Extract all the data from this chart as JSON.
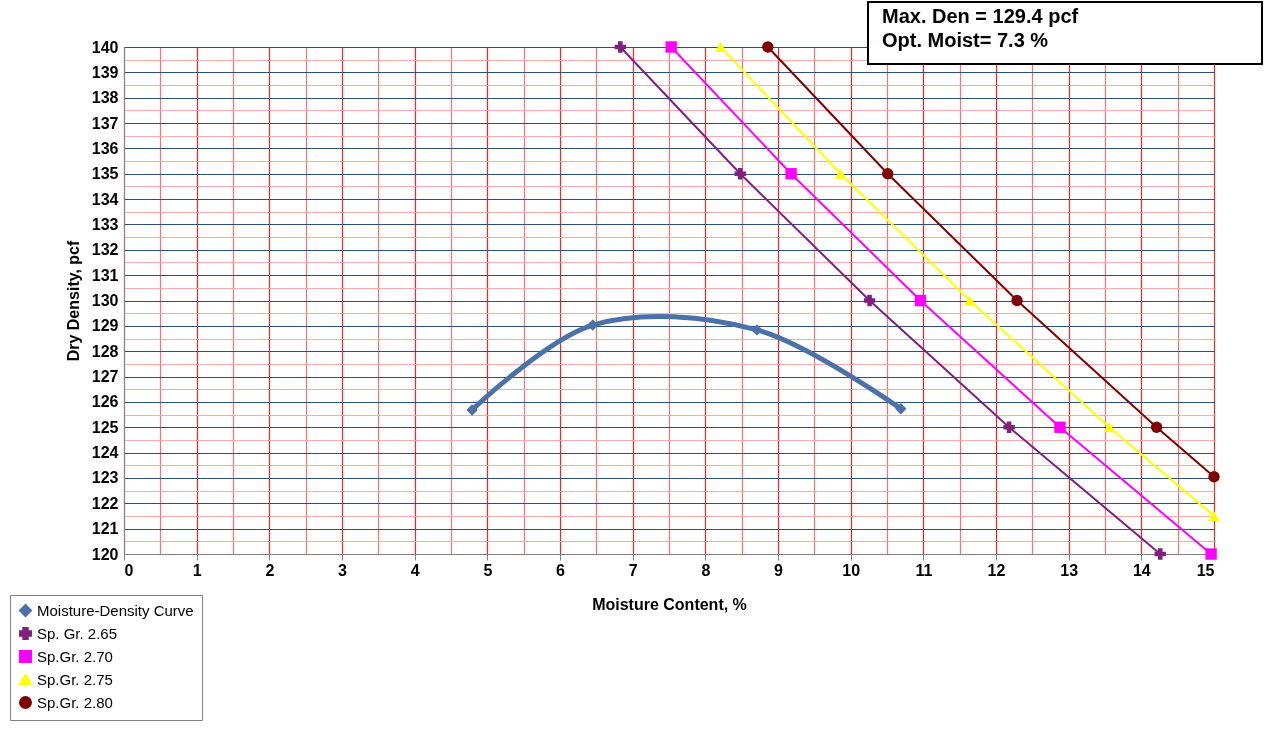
{
  "chart_data": {
    "type": "line",
    "xlabel": "Moisture Content, %",
    "ylabel": "Dry Density, pcf",
    "xlim": [
      0,
      15
    ],
    "xticks": [
      0,
      {
        "value": 0.5,
        "label": null
      },
      1,
      {
        "value": 1.5,
        "label": null
      },
      2,
      {
        "value": 2.5,
        "label": null
      },
      3,
      {
        "value": 3.5,
        "label": null
      },
      4,
      {
        "value": 4.5,
        "label": null
      },
      5,
      {
        "value": 5.5,
        "label": null
      },
      6,
      {
        "value": 6.5,
        "label": null
      },
      7,
      {
        "value": 7.5,
        "label": null
      },
      8,
      {
        "value": 8.5,
        "label": null
      },
      9,
      {
        "value": 9.5,
        "label": null
      },
      10,
      {
        "value": 10.5,
        "label": null
      },
      11,
      {
        "value": 11.5,
        "label": null
      },
      12,
      {
        "value": 12.5,
        "label": null
      },
      13,
      {
        "value": 13.5,
        "label": null
      },
      14,
      {
        "value": 14.5,
        "label": null
      },
      15
    ],
    "ylim": [
      120,
      140
    ],
    "yticks": [
      120,
      {
        "value": 120.5,
        "label": null
      },
      121,
      {
        "value": 121.5,
        "label": null
      },
      122,
      {
        "value": 122.5,
        "label": null
      },
      123,
      {
        "value": 123.5,
        "label": null
      },
      124,
      {
        "value": 124.5,
        "label": null
      },
      125,
      {
        "value": 125.5,
        "label": null
      },
      126,
      {
        "value": 126.5,
        "label": null
      },
      127,
      {
        "value": 127.5,
        "label": null
      },
      128,
      {
        "value": 128.5,
        "label": null
      },
      129,
      {
        "value": 129.5,
        "label": null
      },
      130,
      {
        "value": 130.5,
        "label": null
      },
      131,
      {
        "value": 131.5,
        "label": null
      },
      132,
      {
        "value": 132.5,
        "label": null
      },
      133,
      {
        "value": 133.5,
        "label": null
      },
      134,
      {
        "value": 134.5,
        "label": null
      },
      135,
      {
        "value": 135.5,
        "label": null
      },
      136,
      {
        "value": 136.5,
        "label": null
      },
      137,
      {
        "value": 137.5,
        "label": null
      },
      138,
      {
        "value": 138.5,
        "label": null
      },
      139,
      {
        "value": 139.5,
        "label": null
      },
      140
    ],
    "grid": true,
    "legend": "bottom left",
    "annotations": [
      "Max. Den = 129.4 pcf",
      "Opt. Moist= 7.3 %"
    ],
    "series": [
      {
        "name": "Moisture-Density Curve",
        "color": "#4a72a8",
        "marker": "diamond",
        "x": [
          4.79,
          6.45,
          8.71,
          10.69
        ],
        "values": [
          125.68,
          129.03,
          128.84,
          125.73
        ]
      },
      {
        "name": "Sp. Gr. 2.65",
        "color": "#7f1f7f",
        "marker": "cross",
        "x": [
          6.83,
          8.48,
          10.26,
          12.18,
          14.26
        ],
        "values": [
          140,
          135,
          130,
          125,
          120
        ]
      },
      {
        "name": "Sp.Gr. 2.70",
        "color": "#ff00ff",
        "marker": "square",
        "x": [
          7.53,
          9.18,
          10.96,
          12.88,
          14.96
        ],
        "values": [
          140,
          135,
          130,
          125,
          120
        ]
      },
      {
        "name": "Sp.Gr. 2.75",
        "color": "#ffff00",
        "marker": "triangle",
        "x": [
          8.21,
          9.86,
          11.64,
          13.56,
          15
        ],
        "values": [
          140,
          135,
          130,
          125,
          121.5
        ]
      },
      {
        "name": "Sp.Gr. 2.80",
        "color": "#800000",
        "marker": "circle",
        "x": [
          8.86,
          10.51,
          12.29,
          14.21,
          15
        ],
        "values": [
          140,
          135,
          130,
          125,
          123.05
        ]
      }
    ]
  }
}
